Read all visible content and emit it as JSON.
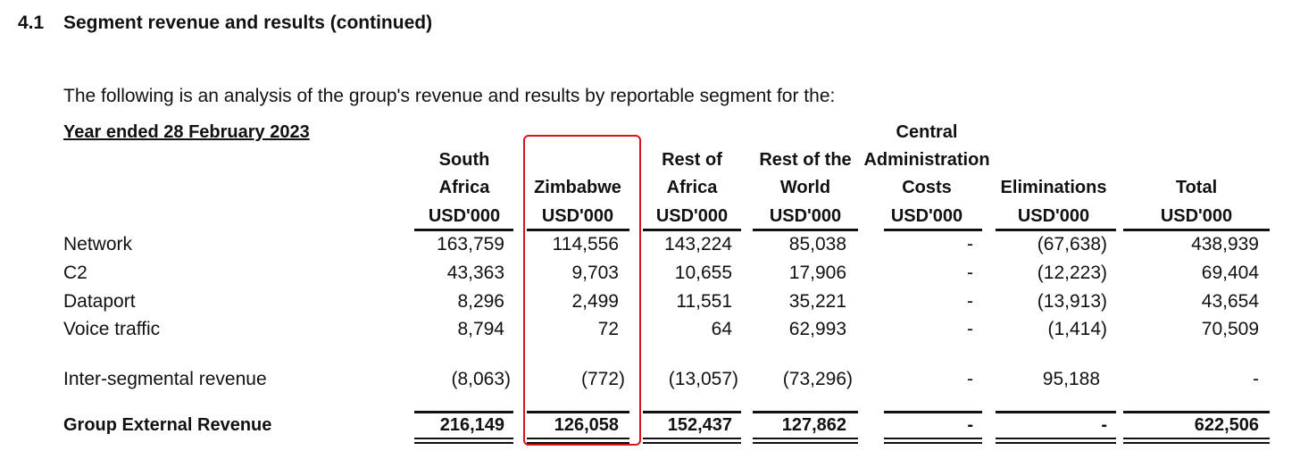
{
  "section": {
    "number": "4.1",
    "title": "Segment revenue and results (continued)"
  },
  "intro": "The following is an analysis of the group's revenue and results by reportable segment for the:",
  "period_label": "Year ended 28 February 2023",
  "columns": [
    {
      "header_lines": [
        "",
        "South",
        "Africa"
      ],
      "unit": "USD'000"
    },
    {
      "header_lines": [
        "",
        "",
        "Zimbabwe"
      ],
      "unit": "USD'000"
    },
    {
      "header_lines": [
        "",
        "Rest of",
        "Africa"
      ],
      "unit": "USD'000"
    },
    {
      "header_lines": [
        "",
        "Rest of the",
        "World"
      ],
      "unit": "USD'000"
    },
    {
      "header_lines": [
        "Central",
        "Administration",
        "Costs"
      ],
      "unit": "USD'000"
    },
    {
      "header_lines": [
        "",
        "",
        "Eliminations"
      ],
      "unit": "USD'000"
    },
    {
      "header_lines": [
        "",
        "",
        "Total"
      ],
      "unit": "USD'000"
    }
  ],
  "rows": [
    {
      "label": "Network",
      "values": [
        "163,759",
        "114,556",
        "143,224",
        "85,038",
        "-",
        "(67,638)",
        "438,939"
      ]
    },
    {
      "label": "C2",
      "values": [
        "43,363",
        "9,703",
        "10,655",
        "17,906",
        "-",
        "(12,223)",
        "69,404"
      ]
    },
    {
      "label": "Dataport",
      "values": [
        "8,296",
        "2,499",
        "11,551",
        "35,221",
        "-",
        "(13,913)",
        "43,654"
      ]
    },
    {
      "label": "Voice traffic",
      "values": [
        "8,794",
        "72",
        "64",
        "62,993",
        "-",
        "(1,414)",
        "70,509"
      ]
    },
    {
      "label": "Inter-segmental revenue",
      "values": [
        "(8,063)",
        "(772)",
        "(13,057)",
        "(73,296)",
        "-",
        "95,188",
        "-"
      ]
    }
  ],
  "total_row": {
    "label": "Group External Revenue",
    "values": [
      "216,149",
      "126,058",
      "152,437",
      "127,862",
      "-",
      "-",
      "622,506"
    ]
  },
  "highlight_color": "#d8151b"
}
